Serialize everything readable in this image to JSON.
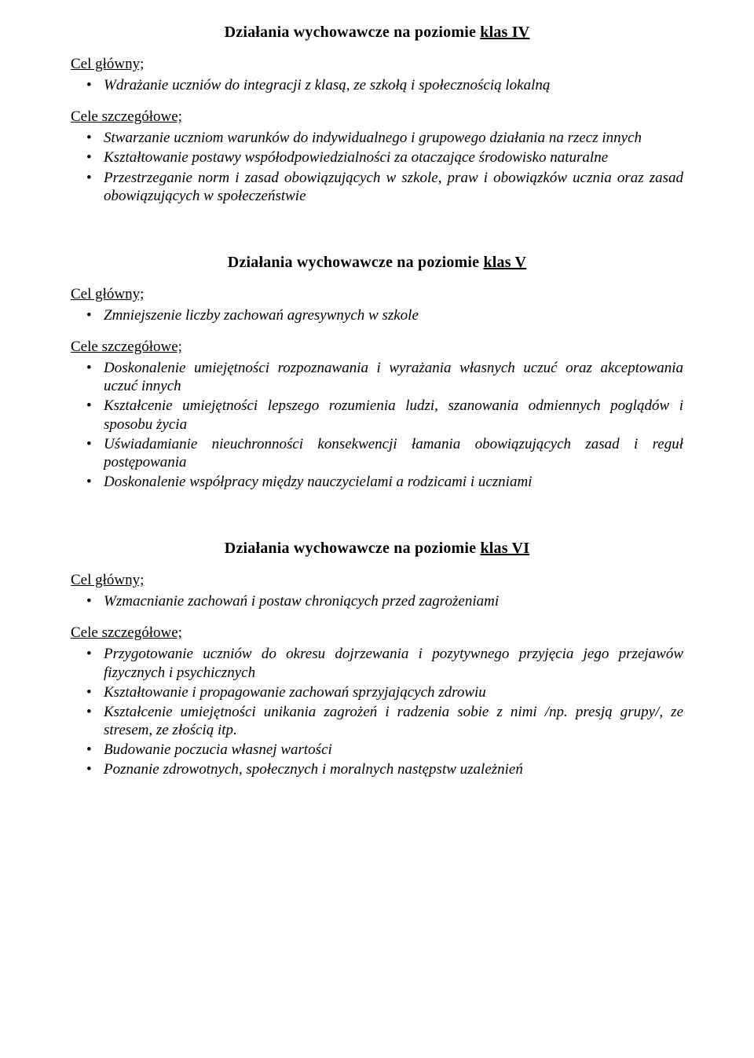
{
  "colors": {
    "page_bg": "#ffffff",
    "text": "#000000"
  },
  "typography": {
    "font_family": "Times New Roman",
    "title_size_pt": 15,
    "body_size_pt": 14,
    "bullet_italic": true
  },
  "sections": [
    {
      "title_plain": "Działania wychowawcze na poziomie ",
      "title_underlined": "klas IV",
      "main_goal_label": "Cel główny;",
      "main_goal_items": [
        "Wdrażanie uczniów do integracji z klasą, ze szkołą i społecznością lokalną"
      ],
      "detail_label": "Cele szczegółowe;",
      "detail_items": [
        "Stwarzanie uczniom warunków do indywidualnego i grupowego działania na rzecz innych",
        "Kształtowanie postawy współodpowiedzialności za otaczające środowisko naturalne",
        "Przestrzeganie norm i zasad obowiązujących w szkole, praw i obowiązków ucznia oraz zasad obowiązujących w społeczeństwie"
      ]
    },
    {
      "title_plain": "Działania wychowawcze na poziomie ",
      "title_underlined": "klas V",
      "main_goal_label": "Cel główny;",
      "main_goal_items": [
        "Zmniejszenie liczby zachowań agresywnych w szkole"
      ],
      "detail_label": "Cele szczegółowe;",
      "detail_items": [
        "Doskonalenie umiejętności rozpoznawania i wyrażania własnych uczuć oraz akceptowania uczuć innych",
        "Kształcenie umiejętności lepszego rozumienia ludzi, szanowania odmiennych poglądów i sposobu życia",
        "Uświadamianie nieuchronności konsekwencji łamania obowiązujących zasad i reguł postępowania",
        "Doskonalenie współpracy między nauczycielami a rodzicami i uczniami"
      ]
    },
    {
      "title_plain": "Działania wychowawcze na poziomie ",
      "title_underlined": "klas VI",
      "main_goal_label": "Cel główny;",
      "main_goal_items": [
        "Wzmacnianie zachowań i postaw chroniących przed zagrożeniami"
      ],
      "detail_label": "Cele szczegółowe;",
      "detail_items": [
        "Przygotowanie uczniów do okresu dojrzewania i pozytywnego przyjęcia jego przejawów fizycznych i psychicznych",
        "Kształtowanie i propagowanie zachowań sprzyjających zdrowiu",
        "Kształcenie umiejętności unikania zagrożeń i radzenia sobie z nimi /np. presją grupy/, ze stresem, ze złością itp.",
        "Budowanie poczucia własnej wartości",
        "Poznanie zdrowotnych, społecznych i moralnych następstw uzależnień"
      ]
    }
  ]
}
